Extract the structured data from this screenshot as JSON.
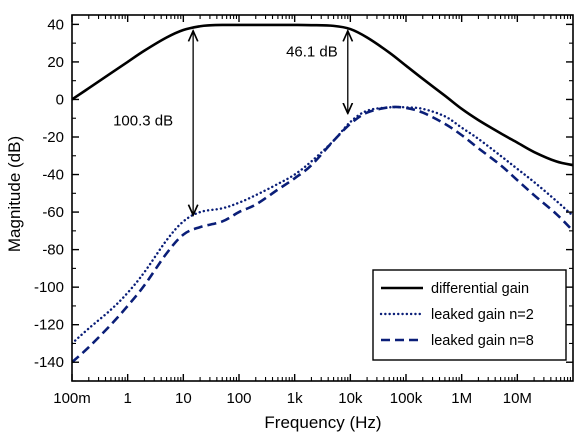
{
  "chart_data": {
    "type": "line",
    "title": "",
    "xlabel": "Frequency (Hz)",
    "ylabel": "Magnitude (dB)",
    "x_scale": "log",
    "xlim": [
      0.1,
      100000000
    ],
    "ylim": [
      -150,
      45
    ],
    "x_ticks": [
      {
        "value": 0.1,
        "label": "100m"
      },
      {
        "value": 1,
        "label": "1"
      },
      {
        "value": 10,
        "label": "10"
      },
      {
        "value": 100,
        "label": "100"
      },
      {
        "value": 1000,
        "label": "1k"
      },
      {
        "value": 10000,
        "label": "10k"
      },
      {
        "value": 100000,
        "label": "100k"
      },
      {
        "value": 1000000,
        "label": "1M"
      },
      {
        "value": 10000000,
        "label": "10M"
      }
    ],
    "y_ticks": [
      40,
      20,
      0,
      -20,
      -40,
      -60,
      -80,
      -100,
      -120,
      -140
    ],
    "grid": false,
    "legend_position": "lower-right",
    "series": [
      {
        "name": "differential gain",
        "color": "#000000",
        "style": "solid",
        "x": [
          0.1,
          0.2,
          0.5,
          1,
          2,
          5,
          10,
          20,
          30,
          50,
          100,
          200,
          500,
          1000,
          2000,
          5000,
          10000,
          20000,
          50000,
          100000,
          200000,
          500000,
          1000000,
          2000000,
          5000000,
          10000000,
          20000000,
          50000000,
          100000000
        ],
        "values": [
          0,
          6,
          14,
          20,
          26,
          33,
          37,
          39,
          39.5,
          39.7,
          39.7,
          39.7,
          39.7,
          39.7,
          39.6,
          39.2,
          37.5,
          33,
          25,
          18,
          11,
          2,
          -5,
          -11,
          -18,
          -23,
          -28,
          -33,
          -35
        ]
      },
      {
        "name": "leaked gain n=2",
        "color": "#0a1e78",
        "style": "dotted",
        "x": [
          0.1,
          0.2,
          0.5,
          1,
          2,
          5,
          10,
          20,
          50,
          100,
          200,
          500,
          1000,
          2000,
          5000,
          10000,
          20000,
          50000,
          100000,
          200000,
          500000,
          1000000,
          2000000,
          5000000,
          10000000,
          20000000,
          50000000,
          100000000
        ],
        "values": [
          -130,
          -122,
          -112,
          -103,
          -92,
          -75,
          -65,
          -60,
          -58,
          -55,
          -51,
          -45,
          -40,
          -33,
          -22,
          -12,
          -6,
          -4.2,
          -4.2,
          -5,
          -9,
          -15,
          -21,
          -30,
          -37,
          -44,
          -54,
          -62
        ]
      },
      {
        "name": "leaked gain n=8",
        "color": "#0a1e78",
        "style": "dashed",
        "x": [
          0.1,
          0.2,
          0.5,
          1,
          2,
          5,
          10,
          20,
          50,
          100,
          200,
          500,
          1000,
          2000,
          5000,
          10000,
          20000,
          50000,
          100000,
          200000,
          500000,
          1000000,
          2000000,
          5000000,
          10000000,
          20000000,
          50000000,
          100000000
        ],
        "values": [
          -140,
          -132,
          -120,
          -110,
          -99,
          -82,
          -72,
          -68,
          -65,
          -60,
          -56,
          -48,
          -42,
          -35,
          -22,
          -13,
          -7,
          -4.2,
          -4.5,
          -7,
          -13,
          -19,
          -26,
          -35,
          -43,
          -51,
          -61,
          -70
        ]
      }
    ],
    "annotations": [
      {
        "label": "100.3 dB",
        "x": 15,
        "y_from": 37.6,
        "y_to": -62.7
      },
      {
        "label": "46.1 dB",
        "x": 9000,
        "y_from": 37.6,
        "y_to": -8.5
      }
    ]
  }
}
